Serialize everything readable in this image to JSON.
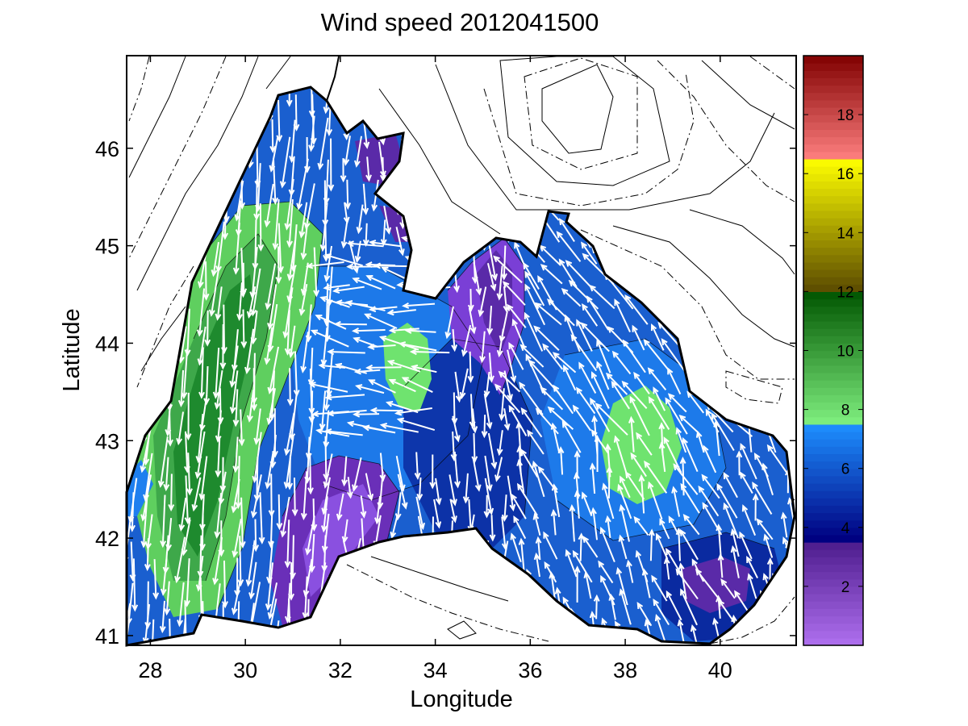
{
  "title": "Wind speed 2012041500",
  "map": {
    "xlabel": "Longitude",
    "ylabel": "Latitude",
    "xlim": [
      27.5,
      41.6
    ],
    "ylim": [
      40.9,
      46.95
    ],
    "xticks": [
      "28",
      "30",
      "32",
      "34",
      "36",
      "38",
      "40"
    ],
    "xtick_values": [
      28,
      30,
      32,
      34,
      36,
      38,
      40
    ],
    "yticks": [
      "41",
      "42",
      "43",
      "44",
      "45",
      "46"
    ],
    "ytick_values": [
      41,
      42,
      43,
      44,
      45,
      46
    ],
    "regions": [
      {
        "name": "black-sea-basin",
        "fill": "#1a5fcf"
      },
      {
        "name": "western-green-zone",
        "fill": "#5fcf5f"
      },
      {
        "name": "western-dark-green-core",
        "fill": "#1e8a2e"
      },
      {
        "name": "central-green-patch",
        "fill": "#6fe36f"
      },
      {
        "name": "eastern-green-patch",
        "fill": "#6fe36f"
      },
      {
        "name": "crimea-purple",
        "fill": "#7a3fd6"
      },
      {
        "name": "southwest-purple",
        "fill": "#6a2fb8"
      },
      {
        "name": "northwest-purple",
        "fill": "#5a2aa8"
      },
      {
        "name": "southeast-purple",
        "fill": "#5a2aa8"
      }
    ]
  },
  "colorbar": {
    "range": [
      0,
      20
    ],
    "ticks": [
      "2",
      "4",
      "6",
      "8",
      "10",
      "12",
      "14",
      "16",
      "18"
    ],
    "tick_values": [
      2,
      4,
      6,
      8,
      10,
      12,
      14,
      16,
      18
    ],
    "segments": [
      {
        "from": 0,
        "to": 3.6,
        "color_low": "#b070f0",
        "color_high": "#4a1a8a"
      },
      {
        "from": 3.6,
        "to": 7.5,
        "color_low": "#000080",
        "color_high": "#1e90ff"
      },
      {
        "from": 7.5,
        "to": 12.0,
        "color_low": "#80f080",
        "color_high": "#005500"
      },
      {
        "from": 12.0,
        "to": 16.5,
        "color_low": "#5a4a00",
        "color_high": "#ffff00"
      },
      {
        "from": 16.5,
        "to": 20.0,
        "color_low": "#ff8080",
        "color_high": "#800000"
      }
    ]
  }
}
